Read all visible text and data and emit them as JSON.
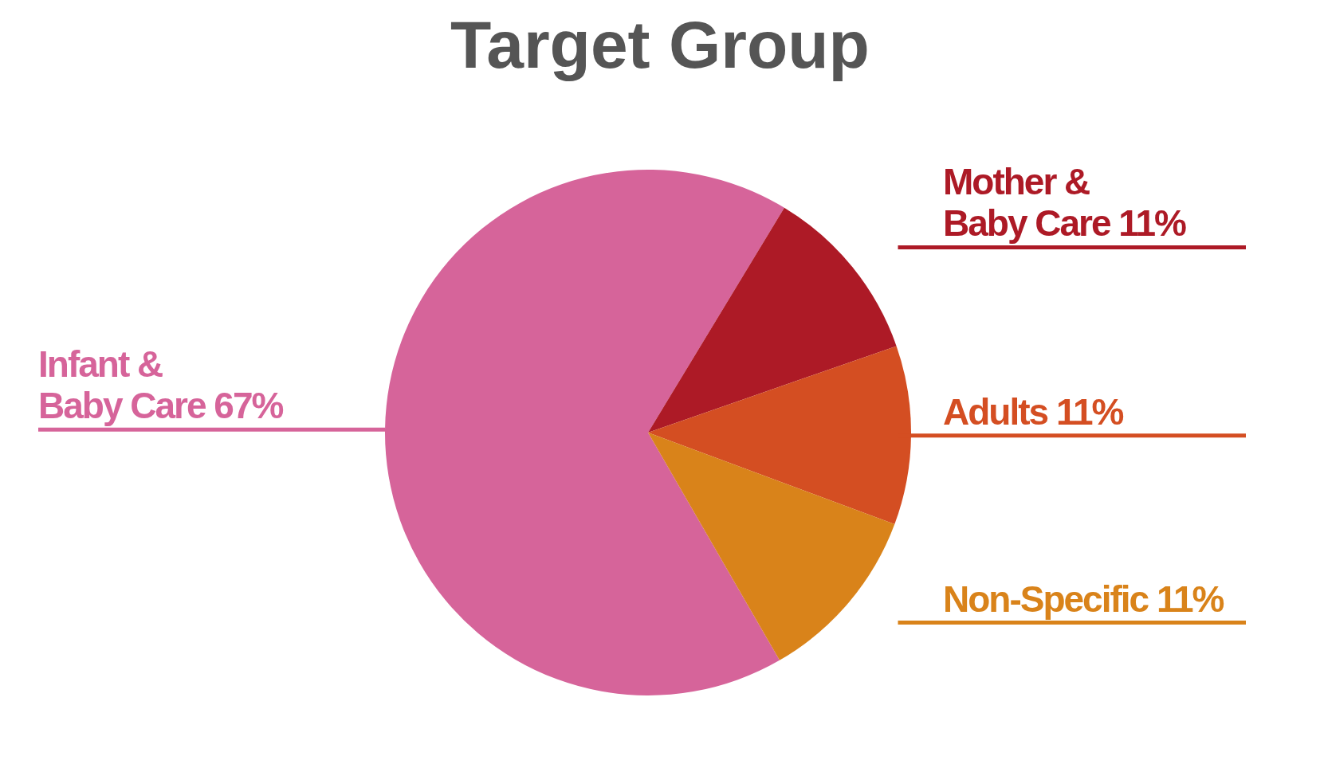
{
  "chart_data": {
    "type": "pie",
    "title": "Target Group",
    "categories": [
      "Infant & Baby Care",
      "Mother & Baby Care",
      "Adults",
      "Non-Specific"
    ],
    "values": [
      67,
      11,
      11,
      11
    ],
    "value_labels": [
      "67%",
      "11%",
      "11%",
      "11%"
    ],
    "colors": [
      "#d6649a",
      "#ad1a26",
      "#d44e22",
      "#d9831a"
    ]
  }
}
